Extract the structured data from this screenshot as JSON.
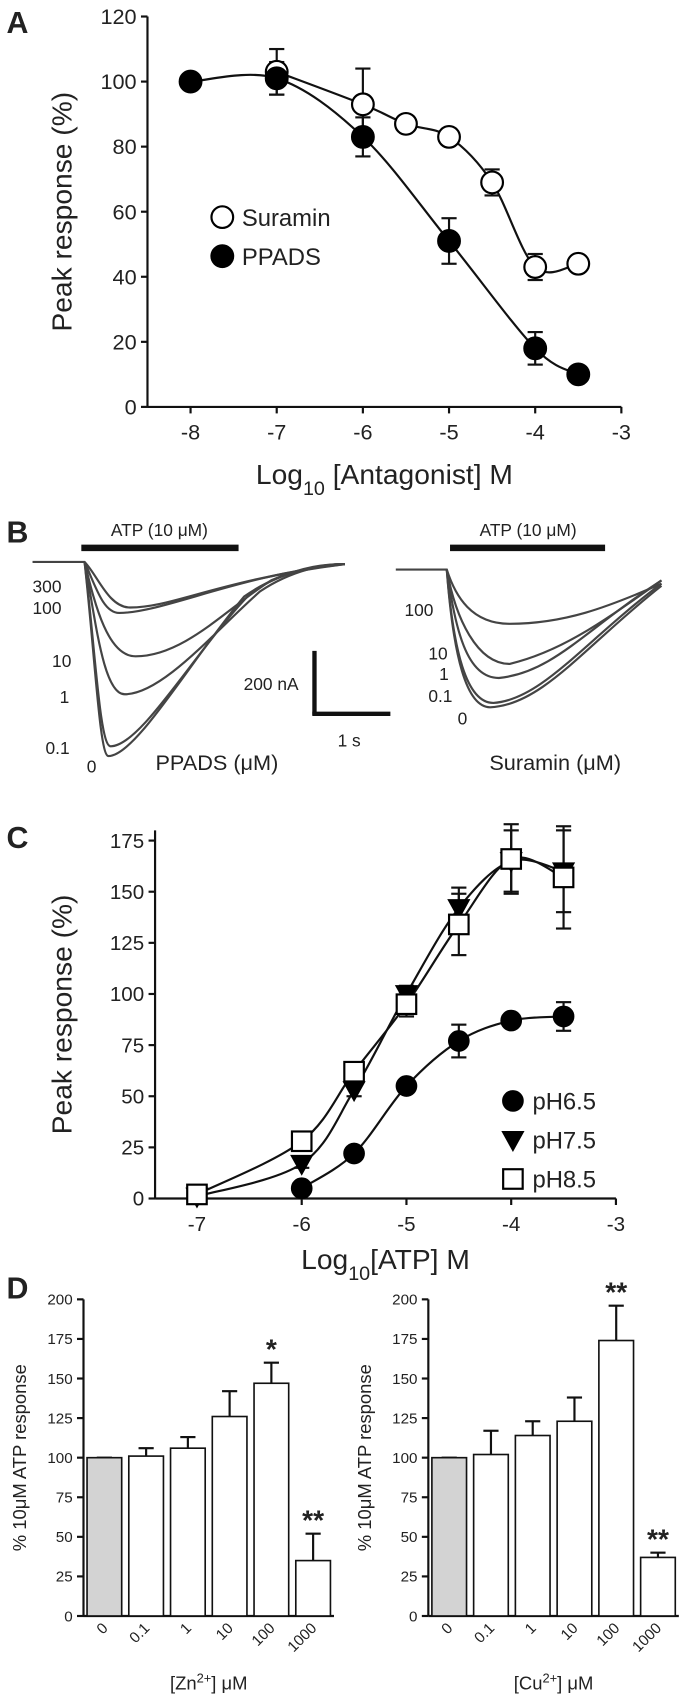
{
  "panel_labels": [
    "A",
    "B",
    "C",
    "D"
  ],
  "chart_data": [
    {
      "type": "scatter",
      "ylabel": "Peak response (%)",
      "xlabel": [
        "Log",
        "10",
        " [Antagonist] M"
      ],
      "xlim": [
        -8.5,
        -3
      ],
      "xticks": [
        -8,
        -7,
        -6,
        -5,
        -4,
        -3
      ],
      "ylim": [
        0,
        120
      ],
      "yticks": [
        0,
        20,
        40,
        60,
        80,
        100,
        120
      ],
      "legend": "center-left",
      "series": [
        {
          "name": "Suramin",
          "color": "#ffffff",
          "marker": "circle",
          "x": [
            -7,
            -6,
            -5.5,
            -5,
            -4.5,
            -4,
            -3.5
          ],
          "values": [
            103,
            93,
            87,
            83,
            69,
            43,
            44
          ],
          "errors": [
            7,
            11,
            2,
            2,
            4,
            4,
            2
          ]
        },
        {
          "name": "PPADS",
          "color": "#000000",
          "marker": "circle",
          "x": [
            -8,
            -7,
            -6,
            -5,
            -4,
            -3.5
          ],
          "values": [
            100,
            101,
            83,
            51,
            18,
            10
          ],
          "errors": [
            1,
            5,
            6,
            7,
            5,
            1
          ]
        }
      ]
    },
    {
      "type": "scatter",
      "ylabel": "Peak response (%)",
      "xlabel": [
        "Log",
        "10",
        "[ATP] M"
      ],
      "xlim": [
        -7.4,
        -3
      ],
      "xticks": [
        -7,
        -6,
        -5,
        -4,
        -3
      ],
      "ylim": [
        0,
        180
      ],
      "yticks": [
        0,
        25,
        50,
        75,
        100,
        125,
        150,
        175
      ],
      "legend": "lower-right",
      "series": [
        {
          "name": "pH6.5",
          "color": "#000000",
          "marker": "circle",
          "x": [
            -6,
            -5.5,
            -5,
            -4.5,
            -4,
            -3.5
          ],
          "values": [
            5,
            22,
            55,
            77,
            87,
            89
          ],
          "errors": [
            1,
            2,
            3,
            8,
            3,
            7
          ]
        },
        {
          "name": "pH7.5",
          "color": "#000000",
          "marker": "triangle-down",
          "x": [
            -7,
            -6,
            -5.5,
            -5,
            -4.5,
            -4,
            -3.5
          ],
          "values": [
            1,
            17,
            53,
            100,
            142,
            165,
            160
          ],
          "errors": [
            1,
            2,
            3,
            4,
            10,
            15,
            20
          ]
        },
        {
          "name": "pH8.5",
          "color": "#ffffff",
          "marker": "square",
          "x": [
            -7,
            -6,
            -5.5,
            -5,
            -4.5,
            -4,
            -3.5
          ],
          "values": [
            2,
            28,
            62,
            95,
            134,
            166,
            157
          ],
          "errors": [
            1,
            3,
            4,
            6,
            15,
            17,
            25
          ]
        }
      ]
    },
    {
      "type": "bar",
      "ylabel": "% 10μM ATP response",
      "xlabel": [
        "[Zn",
        "2+",
        "] μM"
      ],
      "categories": [
        "0",
        "0.1",
        "1",
        "10",
        "100",
        "1000"
      ],
      "values": [
        100,
        101,
        106,
        126,
        147,
        35
      ],
      "errors": [
        0,
        5,
        7,
        16,
        13,
        17
      ],
      "colors": [
        "#d3d3d3",
        "#ffffff",
        "#ffffff",
        "#ffffff",
        "#ffffff",
        "#ffffff"
      ],
      "ylim": [
        0,
        200
      ],
      "yticks": [
        0,
        25,
        50,
        75,
        100,
        125,
        150,
        175,
        200
      ],
      "annotations": [
        {
          "category": "100",
          "text": "*"
        },
        {
          "category": "1000",
          "text": "**"
        }
      ]
    },
    {
      "type": "bar",
      "ylabel": "% 10μM ATP response",
      "xlabel": [
        "[Cu",
        "2+",
        "] μM"
      ],
      "categories": [
        "0",
        "0.1",
        "1",
        "10",
        "100",
        "1000"
      ],
      "values": [
        100,
        102,
        114,
        123,
        174,
        37
      ],
      "errors": [
        0,
        15,
        9,
        15,
        22,
        3
      ],
      "colors": [
        "#d3d3d3",
        "#ffffff",
        "#ffffff",
        "#ffffff",
        "#ffffff",
        "#ffffff"
      ],
      "ylim": [
        0,
        200
      ],
      "yticks": [
        0,
        25,
        50,
        75,
        100,
        125,
        150,
        175,
        200
      ],
      "annotations": [
        {
          "category": "100",
          "text": "**"
        },
        {
          "category": "1000",
          "text": "**"
        }
      ]
    }
  ],
  "panel_b": {
    "stimulus": "ATP (10 μM)",
    "left": {
      "concentrations": [
        "300",
        "100",
        "10",
        "1",
        "0.1",
        "0"
      ],
      "label": "PPADS (μM)"
    },
    "right": {
      "concentrations": [
        "100",
        "10",
        "1",
        "0.1",
        "0"
      ],
      "label": "Suramin (μM)"
    },
    "scale_current": "200 nA",
    "scale_time": "1 s"
  }
}
